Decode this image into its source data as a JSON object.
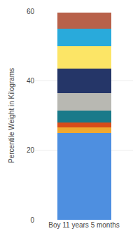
{
  "chart_data": {
    "type": "bar",
    "categories": [
      "Boy 11 years 5 months"
    ],
    "series": [
      {
        "color": "#4e8fe0",
        "values": [
          25.0
        ]
      },
      {
        "color": "#f0a830",
        "values": [
          1.5
        ]
      },
      {
        "color": "#d94c1a",
        "values": [
          1.5
        ]
      },
      {
        "color": "#1a7a8a",
        "values": [
          3.5
        ]
      },
      {
        "color": "#b8b8b2",
        "values": [
          5.0
        ]
      },
      {
        "color": "#253668",
        "values": [
          7.0
        ]
      },
      {
        "color": "#fce566",
        "values": [
          6.5
        ]
      },
      {
        "color": "#29aadb",
        "values": [
          5.0
        ]
      },
      {
        "color": "#b8614a",
        "values": [
          4.5
        ]
      }
    ],
    "stacked": true,
    "ylabel": "Percentile Weight in Kilograms",
    "ylim": [
      0,
      60
    ],
    "yticks": [
      0,
      20,
      40,
      60
    ],
    "grid": true
  }
}
